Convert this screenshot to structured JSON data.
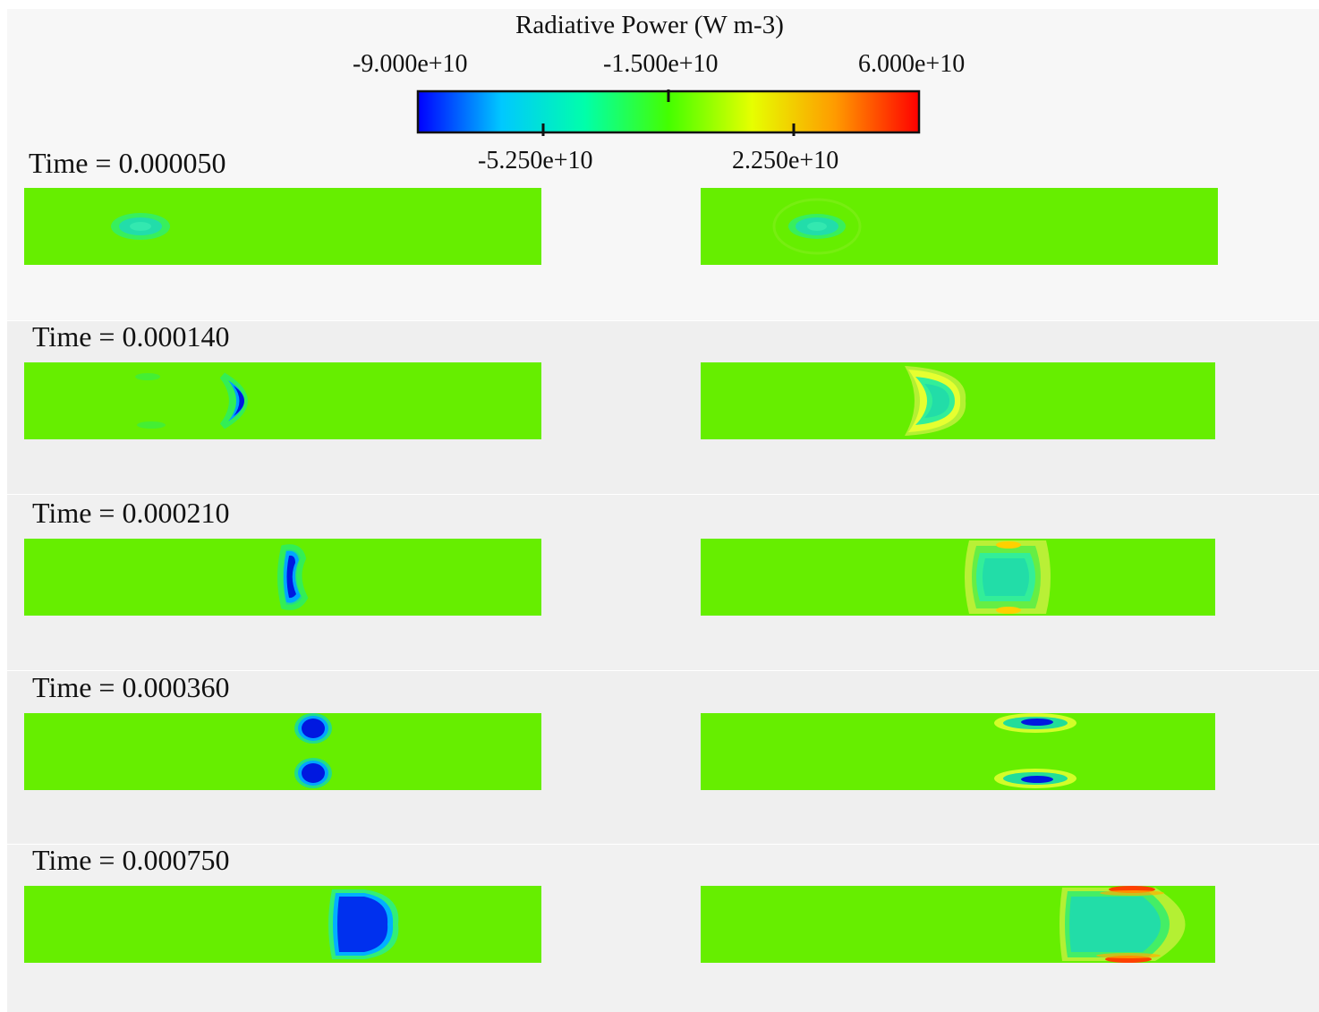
{
  "colorbar": {
    "title": "Radiative Power (W  m-3)",
    "ticks": [
      {
        "label": "-9.000e+10",
        "value": -90000000000
      },
      {
        "label": "-5.250e+10",
        "value": -52500000000
      },
      {
        "label": "-1.500e+10",
        "value": -15000000000
      },
      {
        "label": "2.250e+10",
        "value": 22500000000
      },
      {
        "label": "6.000e+10",
        "value": 60000000000
      }
    ],
    "min": -90000000000,
    "max": 60000000000,
    "colors": [
      "#0000ff",
      "#00c8ff",
      "#00ffaa",
      "#44ff00",
      "#e6ff00",
      "#ff9a00",
      "#ff0000"
    ]
  },
  "field_color": "#66ee00",
  "rows": [
    {
      "time_label": "Time = 0.000050"
    },
    {
      "time_label": "Time = 0.000140"
    },
    {
      "time_label": "Time = 0.000210"
    },
    {
      "time_label": "Time = 0.000360"
    },
    {
      "time_label": "Time = 0.000750"
    }
  ]
}
